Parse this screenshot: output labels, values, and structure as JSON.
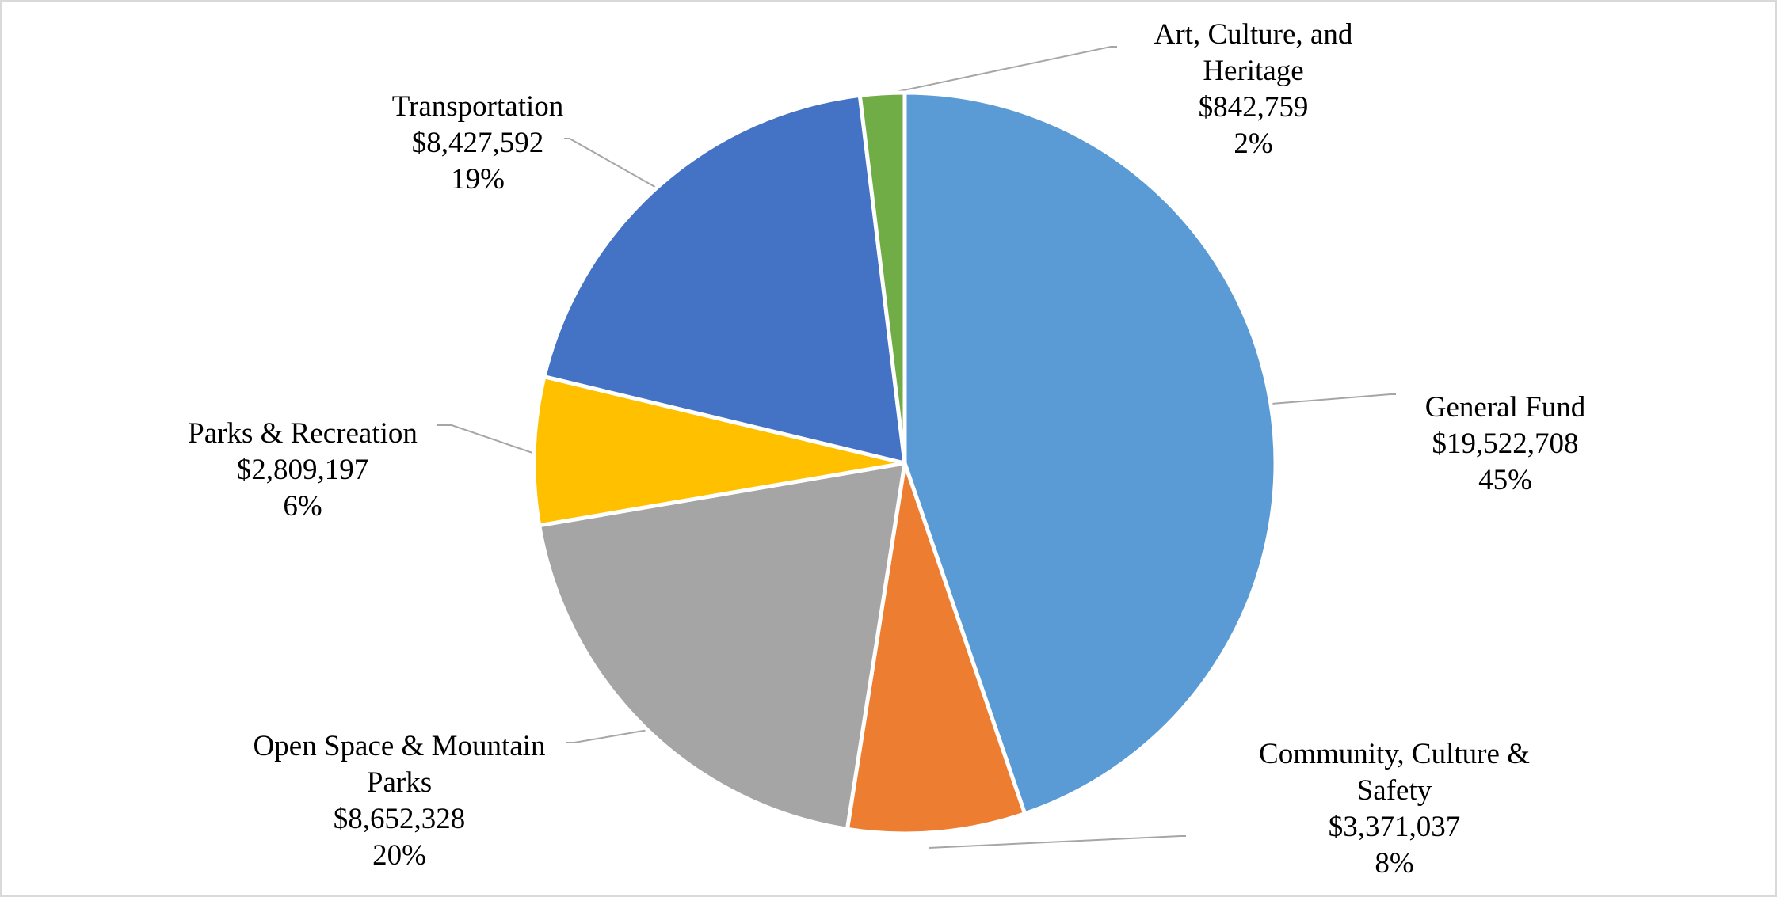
{
  "chart_data": {
    "type": "pie",
    "start_angle_deg": 0,
    "direction": "clockwise",
    "slices": [
      {
        "name": "General Fund",
        "label_lines": [
          "General Fund"
        ],
        "amount": "$19,522,708",
        "value": 19522708,
        "percent": "45%",
        "color": "#5b9bd5"
      },
      {
        "name": "Community, Culture & Safety",
        "label_lines": [
          "Community, Culture &",
          "Safety"
        ],
        "amount": "$3,371,037",
        "value": 3371037,
        "percent": "8%",
        "color": "#ed7d31"
      },
      {
        "name": "Open Space & Mountain Parks",
        "label_lines": [
          "Open Space & Mountain",
          "Parks"
        ],
        "amount": "$8,652,328",
        "value": 8652328,
        "percent": "20%",
        "color": "#a5a5a5"
      },
      {
        "name": "Parks & Recreation",
        "label_lines": [
          "Parks & Recreation"
        ],
        "amount": "$2,809,197",
        "value": 2809197,
        "percent": "6%",
        "color": "#ffc000"
      },
      {
        "name": "Transportation",
        "label_lines": [
          "Transportation"
        ],
        "amount": "$8,427,592",
        "value": 8427592,
        "percent": "19%",
        "color": "#4472c4"
      },
      {
        "name": "Art, Culture, and Heritage",
        "label_lines": [
          "Art, Culture, and",
          "Heritage"
        ],
        "amount": "$842,759",
        "value": 842759,
        "percent": "2%",
        "color": "#70ad47"
      }
    ],
    "legend": "none",
    "data_labels": "outside with leader lines"
  }
}
